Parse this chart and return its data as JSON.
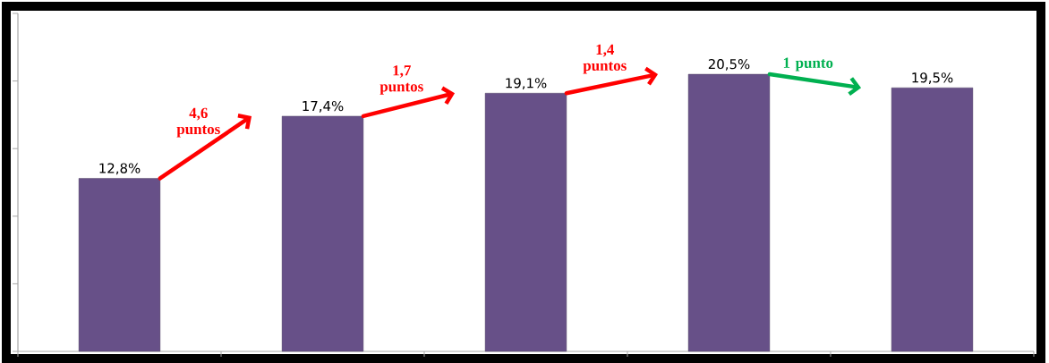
{
  "chart_data": {
    "type": "bar",
    "categories": [
      null,
      null,
      null,
      null,
      null
    ],
    "values": [
      12.8,
      17.4,
      19.1,
      20.5,
      19.5
    ],
    "value_labels": [
      "12,8%",
      "17,4%",
      "19,1%",
      "20,5%",
      "19,5%"
    ],
    "color": "#675088",
    "ylim": [
      0,
      25
    ],
    "yticks": [
      {
        "value": 0,
        "label": null
      },
      {
        "value": 5,
        "label": null
      },
      {
        "value": 10,
        "label": null
      },
      {
        "value": 15,
        "label": null
      },
      {
        "value": 20,
        "label": null
      },
      {
        "value": 25,
        "label": null
      }
    ],
    "annotations": [
      "4,6 puntos",
      "1,7 puntos",
      "1,4 puntos",
      "1 punto"
    ]
  }
}
